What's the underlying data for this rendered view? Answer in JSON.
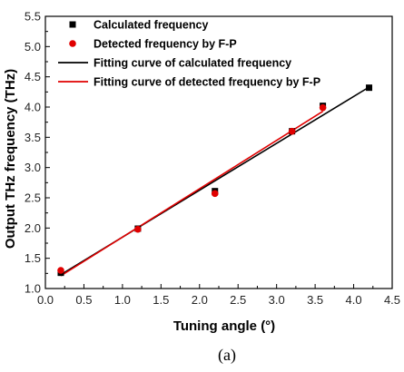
{
  "chart_data": {
    "type": "scatter",
    "xlabel": "Tuning angle (°)",
    "ylabel": "Output THz frequency (THz)",
    "caption": "(a)",
    "xlim": [
      0.0,
      4.5
    ],
    "ylim": [
      1.0,
      5.5
    ],
    "xticks": [
      "0.0",
      "0.5",
      "1.0",
      "1.5",
      "2.0",
      "2.5",
      "3.0",
      "3.5",
      "4.0",
      "4.5"
    ],
    "yticks": [
      "1.0",
      "1.5",
      "2.0",
      "2.5",
      "3.0",
      "3.5",
      "4.0",
      "4.5",
      "5.0",
      "5.5"
    ],
    "legend_position": "top-left",
    "series": [
      {
        "name": "Calculated frequency",
        "kind": "points",
        "marker": "square",
        "color": "#000000",
        "x": [
          0.2,
          1.2,
          2.2,
          3.2,
          3.6,
          4.2
        ],
        "y": [
          1.26,
          1.99,
          2.61,
          3.6,
          4.02,
          4.32
        ]
      },
      {
        "name": "Detected frequency by F-P",
        "kind": "points",
        "marker": "circle",
        "color": "#e00000",
        "x": [
          0.2,
          1.2,
          2.2,
          3.2,
          3.6
        ],
        "y": [
          1.3,
          1.98,
          2.57,
          3.6,
          3.99
        ]
      },
      {
        "name": "Fitting curve of calculated frequency",
        "kind": "line",
        "color": "#000000",
        "x": [
          0.2,
          4.2
        ],
        "y": [
          1.23,
          4.33
        ]
      },
      {
        "name": "Fitting curve of detected frequency by F-P",
        "kind": "line",
        "color": "#e00000",
        "x": [
          0.2,
          3.6
        ],
        "y": [
          1.21,
          3.93
        ]
      }
    ]
  }
}
